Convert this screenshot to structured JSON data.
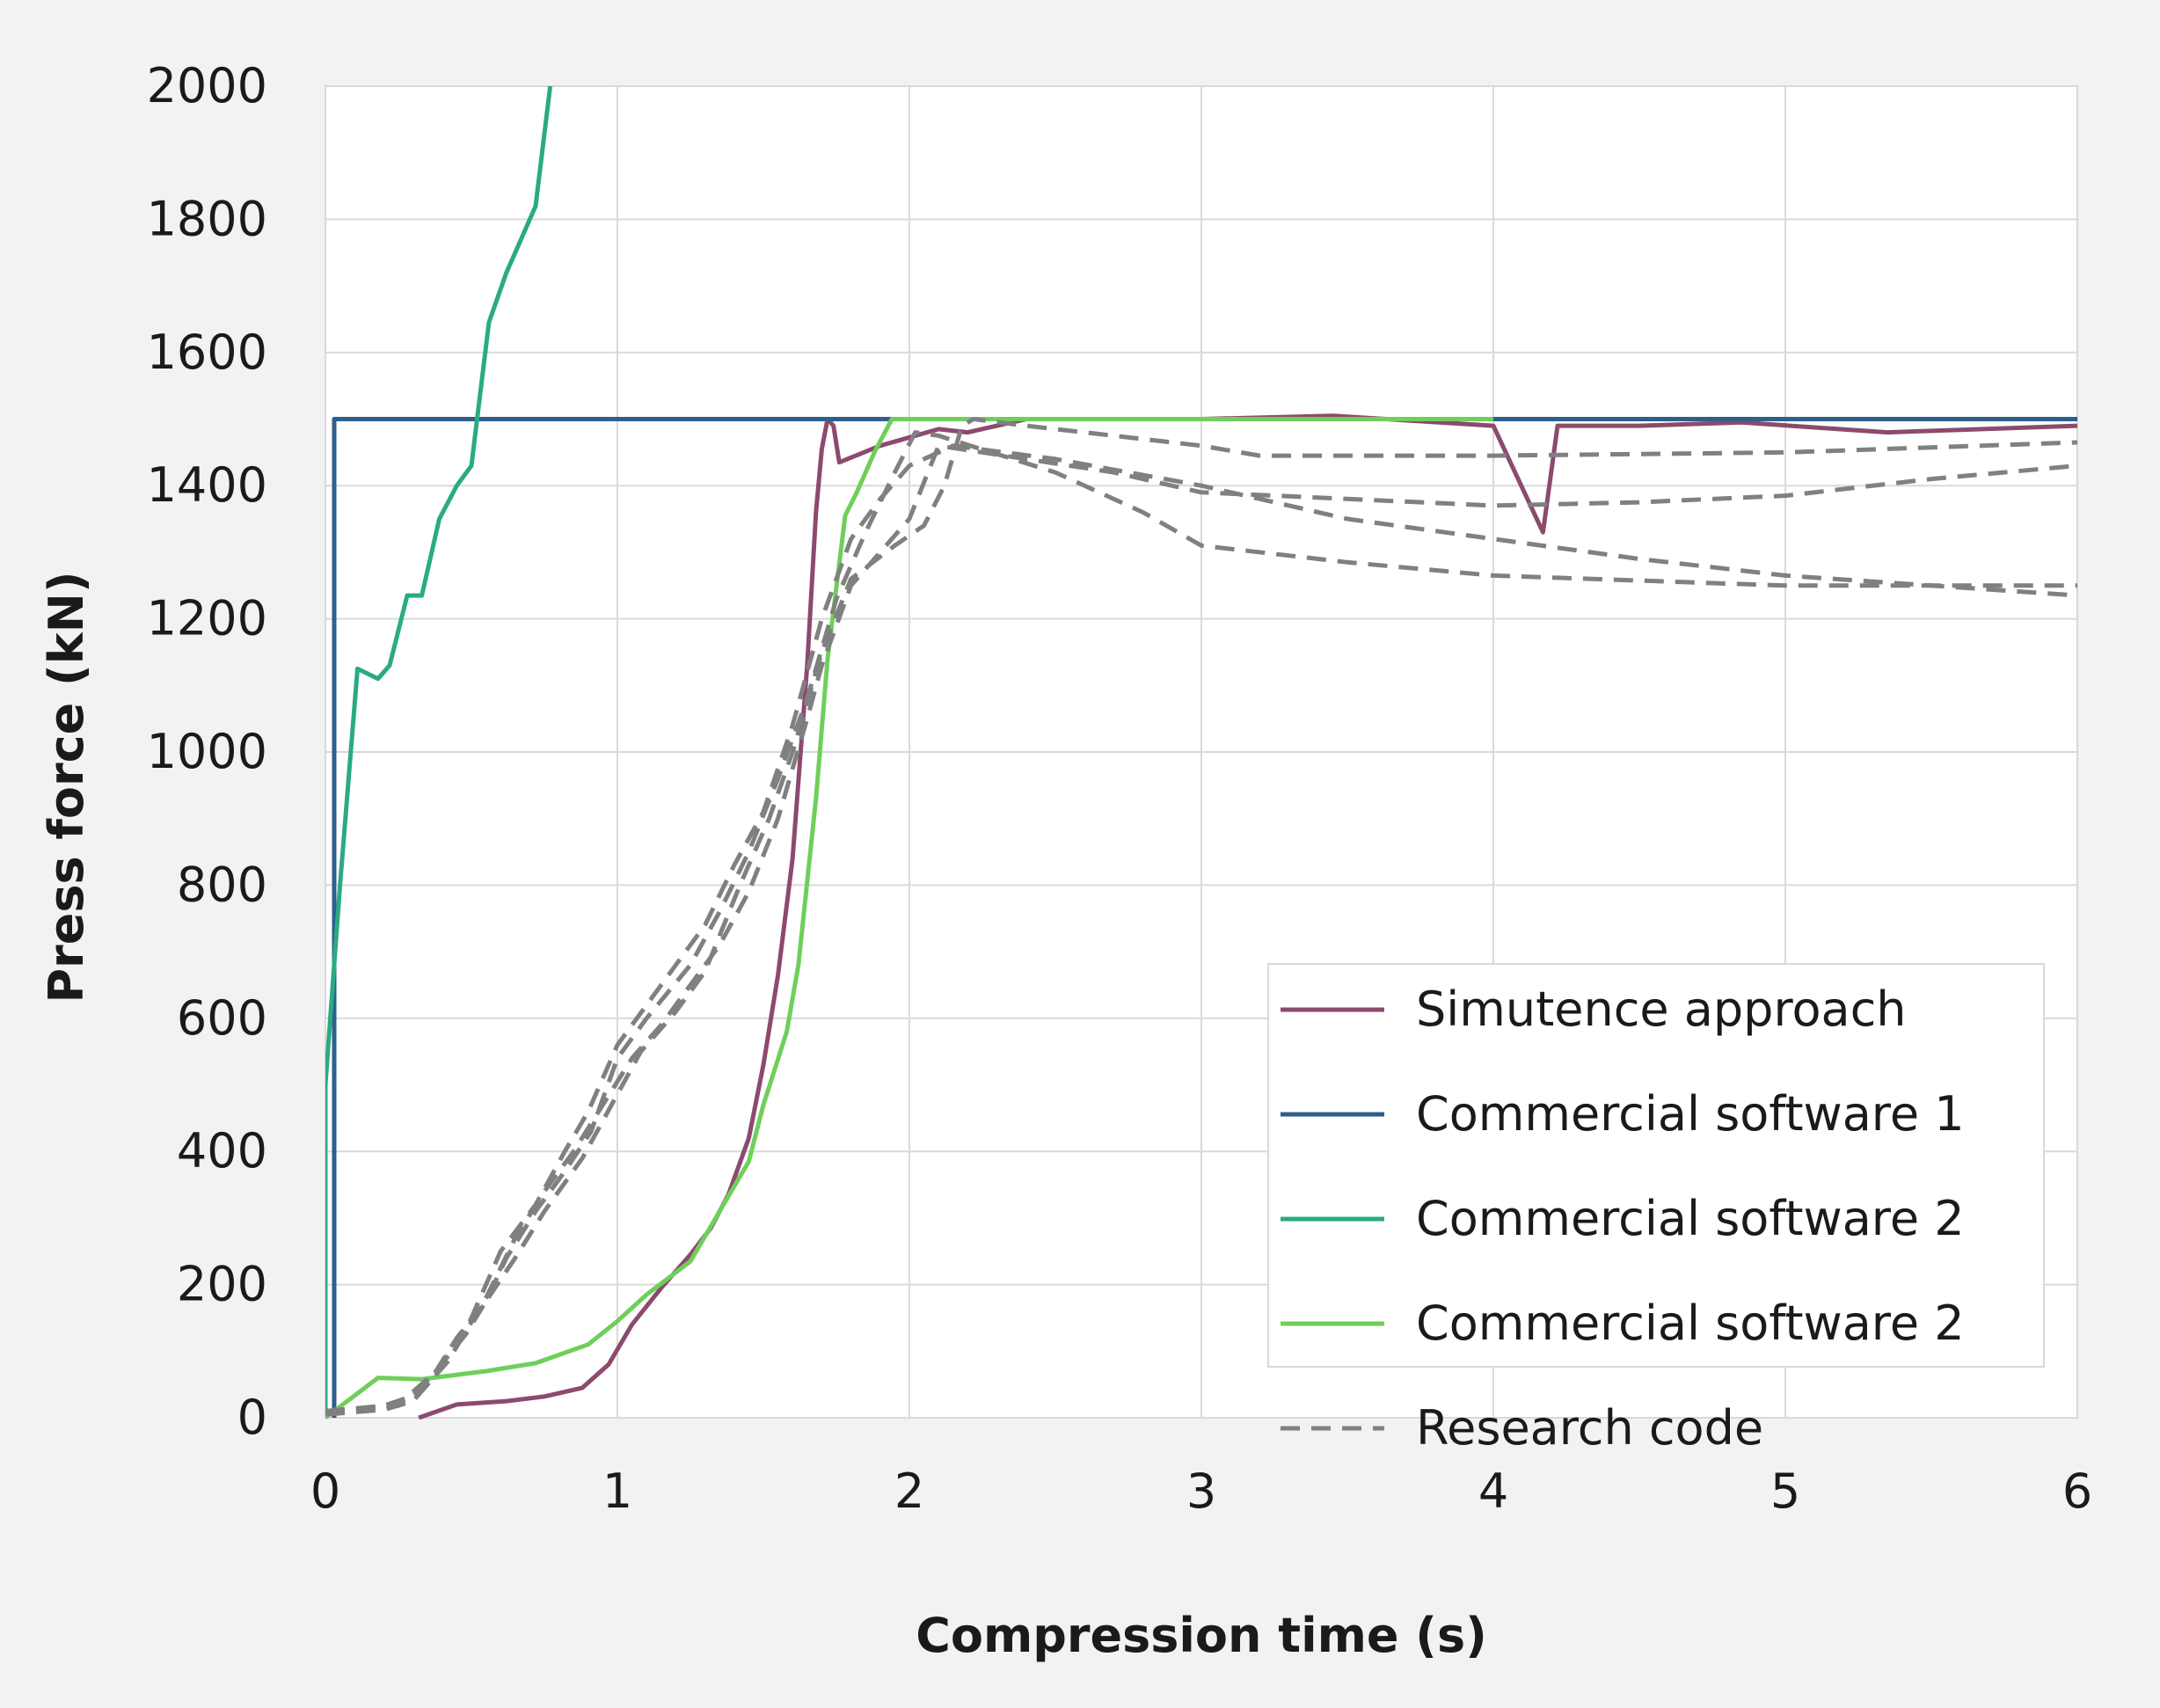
{
  "chart_data": {
    "type": "line",
    "xlabel": "Compression time (s)",
    "ylabel": "Press force (kN)",
    "xlim": [
      0,
      6
    ],
    "ylim": [
      0,
      2000
    ],
    "xticks": [
      "0",
      "1",
      "2",
      "3",
      "4",
      "5",
      "6"
    ],
    "yticks": [
      "0",
      "200",
      "400",
      "600",
      "800",
      "1000",
      "1200",
      "1400",
      "1600",
      "1800",
      "2000"
    ],
    "grid": true,
    "legend_position": "bottom-right",
    "colors": {
      "background": "#f2f2f2",
      "plot_background": "#ffffff",
      "grid": "#d9d9d9"
    },
    "series": [
      {
        "name": "Simutence approach",
        "color": "#8b4a6e",
        "dashed": false,
        "legend": true,
        "points": [
          [
            0.32,
            0
          ],
          [
            0.45,
            20
          ],
          [
            0.62,
            25
          ],
          [
            0.75,
            32
          ],
          [
            0.88,
            45
          ],
          [
            0.97,
            80
          ],
          [
            1.05,
            140
          ],
          [
            1.15,
            195
          ],
          [
            1.25,
            245
          ],
          [
            1.32,
            285
          ],
          [
            1.38,
            335
          ],
          [
            1.45,
            420
          ],
          [
            1.5,
            530
          ],
          [
            1.55,
            665
          ],
          [
            1.6,
            840
          ],
          [
            1.65,
            1130
          ],
          [
            1.68,
            1360
          ],
          [
            1.7,
            1455
          ],
          [
            1.72,
            1500
          ],
          [
            1.74,
            1490
          ],
          [
            1.76,
            1435
          ],
          [
            1.9,
            1460
          ],
          [
            2.1,
            1485
          ],
          [
            2.2,
            1480
          ],
          [
            2.4,
            1500
          ],
          [
            3.0,
            1500
          ],
          [
            3.45,
            1505
          ],
          [
            4.0,
            1490
          ],
          [
            4.17,
            1330
          ],
          [
            4.22,
            1490
          ],
          [
            4.5,
            1490
          ],
          [
            4.85,
            1495
          ],
          [
            5.35,
            1480
          ],
          [
            6.0,
            1490
          ]
        ]
      },
      {
        "name": "Commercial software 1",
        "color": "#2e5f8a",
        "dashed": false,
        "legend": true,
        "points": [
          [
            0.03,
            0
          ],
          [
            0.03,
            1500
          ],
          [
            6.0,
            1500
          ]
        ]
      },
      {
        "name": "Commercial software 2",
        "color": "#2aaa85",
        "dashed": false,
        "legend": true,
        "points": [
          [
            0.0,
            0
          ],
          [
            0.0,
            500
          ],
          [
            0.05,
            800
          ],
          [
            0.11,
            1125
          ],
          [
            0.18,
            1110
          ],
          [
            0.22,
            1130
          ],
          [
            0.28,
            1235
          ],
          [
            0.33,
            1235
          ],
          [
            0.39,
            1350
          ],
          [
            0.45,
            1400
          ],
          [
            0.5,
            1430
          ],
          [
            0.56,
            1645
          ],
          [
            0.62,
            1720
          ],
          [
            0.66,
            1760
          ],
          [
            0.72,
            1820
          ],
          [
            0.77,
            2000
          ]
        ]
      },
      {
        "name": "Commercial software 2",
        "color": "#6fcf5a",
        "dashed": false,
        "legend": true,
        "points": [
          [
            0.0,
            0
          ],
          [
            0.18,
            60
          ],
          [
            0.33,
            58
          ],
          [
            0.55,
            70
          ],
          [
            0.72,
            82
          ],
          [
            0.9,
            110
          ],
          [
            1.0,
            145
          ],
          [
            1.1,
            185
          ],
          [
            1.25,
            235
          ],
          [
            1.35,
            310
          ],
          [
            1.45,
            385
          ],
          [
            1.5,
            470
          ],
          [
            1.58,
            580
          ],
          [
            1.62,
            680
          ],
          [
            1.68,
            930
          ],
          [
            1.72,
            1140
          ],
          [
            1.78,
            1355
          ],
          [
            1.82,
            1390
          ],
          [
            1.88,
            1450
          ],
          [
            1.94,
            1500
          ],
          [
            2.1,
            1500
          ],
          [
            3.0,
            1500
          ],
          [
            4.0,
            1500
          ]
        ]
      },
      {
        "name": "Research code",
        "color": "#808080",
        "dashed": true,
        "legend": true,
        "points": [
          [
            0.0,
            10
          ],
          [
            0.18,
            15
          ],
          [
            0.28,
            30
          ],
          [
            0.36,
            60
          ],
          [
            0.48,
            125
          ],
          [
            0.55,
            175
          ],
          [
            0.62,
            240
          ],
          [
            0.72,
            310
          ],
          [
            0.82,
            370
          ],
          [
            0.91,
            430
          ],
          [
            1.0,
            540
          ],
          [
            1.1,
            600
          ],
          [
            1.25,
            680
          ],
          [
            1.35,
            760
          ],
          [
            1.45,
            850
          ],
          [
            1.55,
            960
          ],
          [
            1.65,
            1080
          ],
          [
            1.75,
            1230
          ],
          [
            1.85,
            1330
          ],
          [
            1.95,
            1420
          ],
          [
            2.02,
            1480
          ],
          [
            2.1,
            1475
          ],
          [
            2.5,
            1420
          ],
          [
            2.8,
            1360
          ],
          [
            3.0,
            1310
          ],
          [
            3.5,
            1285
          ],
          [
            4.0,
            1265
          ],
          [
            5.0,
            1250
          ],
          [
            6.0,
            1250
          ]
        ]
      },
      {
        "name": "",
        "color": "#808080",
        "dashed": true,
        "legend": false,
        "points": [
          [
            0.0,
            10
          ],
          [
            0.25,
            20
          ],
          [
            0.38,
            70
          ],
          [
            0.5,
            150
          ],
          [
            0.6,
            250
          ],
          [
            0.72,
            320
          ],
          [
            0.82,
            400
          ],
          [
            0.9,
            460
          ],
          [
            1.0,
            560
          ],
          [
            1.1,
            620
          ],
          [
            1.2,
            680
          ],
          [
            1.3,
            740
          ],
          [
            1.4,
            830
          ],
          [
            1.5,
            910
          ],
          [
            1.6,
            1040
          ],
          [
            1.7,
            1200
          ],
          [
            1.8,
            1320
          ],
          [
            1.9,
            1380
          ],
          [
            2.0,
            1430
          ],
          [
            2.15,
            1460
          ],
          [
            2.5,
            1440
          ],
          [
            3.0,
            1400
          ],
          [
            3.5,
            1350
          ],
          [
            4.0,
            1320
          ],
          [
            4.5,
            1290
          ],
          [
            5.0,
            1265
          ],
          [
            5.5,
            1250
          ],
          [
            6.0,
            1235
          ]
        ]
      },
      {
        "name": "",
        "color": "#808080",
        "dashed": true,
        "legend": false,
        "points": [
          [
            0.0,
            5
          ],
          [
            0.2,
            12
          ],
          [
            0.3,
            25
          ],
          [
            0.42,
            85
          ],
          [
            0.55,
            180
          ],
          [
            0.65,
            270
          ],
          [
            0.75,
            340
          ],
          [
            0.85,
            400
          ],
          [
            0.95,
            470
          ],
          [
            1.05,
            540
          ],
          [
            1.15,
            590
          ],
          [
            1.25,
            650
          ],
          [
            1.35,
            710
          ],
          [
            1.45,
            790
          ],
          [
            1.55,
            900
          ],
          [
            1.65,
            1050
          ],
          [
            1.7,
            1130
          ],
          [
            1.8,
            1250
          ],
          [
            1.9,
            1300
          ],
          [
            2.0,
            1350
          ],
          [
            2.1,
            1460
          ],
          [
            2.4,
            1440
          ],
          [
            2.7,
            1420
          ],
          [
            3.0,
            1390
          ],
          [
            3.5,
            1380
          ],
          [
            4.0,
            1370
          ],
          [
            4.5,
            1375
          ],
          [
            5.0,
            1385
          ],
          [
            5.5,
            1410
          ],
          [
            6.0,
            1430
          ]
        ]
      },
      {
        "name": "",
        "color": "#808080",
        "dashed": true,
        "legend": false,
        "points": [
          [
            0.0,
            8
          ],
          [
            0.25,
            18
          ],
          [
            0.35,
            50
          ],
          [
            0.45,
            120
          ],
          [
            0.55,
            175
          ],
          [
            0.65,
            240
          ],
          [
            0.75,
            310
          ],
          [
            0.88,
            390
          ],
          [
            0.98,
            470
          ],
          [
            1.08,
            550
          ],
          [
            1.2,
            610
          ],
          [
            1.3,
            670
          ],
          [
            1.42,
            800
          ],
          [
            1.52,
            900
          ],
          [
            1.6,
            1000
          ],
          [
            1.7,
            1150
          ],
          [
            1.8,
            1260
          ],
          [
            1.95,
            1310
          ],
          [
            2.05,
            1340
          ],
          [
            2.12,
            1400
          ],
          [
            2.18,
            1490
          ],
          [
            2.22,
            1500
          ],
          [
            2.4,
            1490
          ],
          [
            2.7,
            1475
          ],
          [
            3.0,
            1460
          ],
          [
            3.2,
            1445
          ],
          [
            4.0,
            1445
          ],
          [
            5.0,
            1450
          ],
          [
            6.0,
            1465
          ]
        ]
      }
    ]
  }
}
